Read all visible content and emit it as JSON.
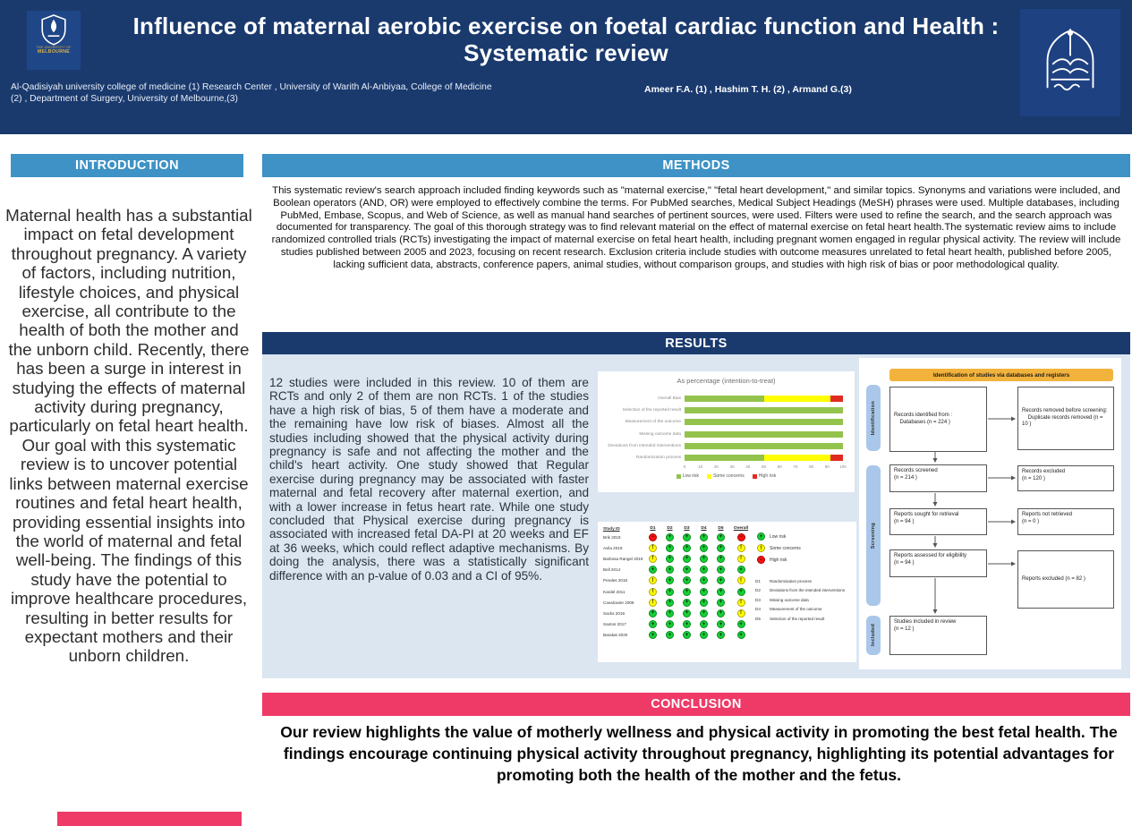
{
  "header": {
    "title_line1": "Influence of maternal aerobic exercise on foetal cardiac function and Health :",
    "title_line2": "Systematic review",
    "affiliations": "Al-Qadisiyah university college of medicine (1)  Research Center , University of Warith Al-Anbiyaa, College of Medicine (2) ,  Department of Surgery, University of Melbourne,(3)",
    "authors": "Ameer F.A. (1) , Hashim T. H. (2)  , Armand G.(3)",
    "left_logo_caption_line1": "THE UNIVERSITY OF",
    "left_logo_caption_line2": "MELBOURNE",
    "header_bg_color": "#1a3a6e"
  },
  "colors": {
    "section_blue": "#3e92c5",
    "navy": "#1a3a6e",
    "conclusion_pink": "#ef3a67",
    "results_panel_bg": "#dbe6f1",
    "prisma_banner_orange": "#f2b33d",
    "prisma_pill_blue": "#a9c7e9"
  },
  "sections": {
    "introduction": {
      "heading": "INTRODUCTION",
      "body": "Maternal health has a substantial impact on fetal development throughout pregnancy. A variety of factors, including nutrition, lifestyle choices, and physical exercise, all contribute to the health of both the mother and the unborn child. Recently, there has been a surge in interest in studying the effects of maternal activity during pregnancy, particularly on fetal heart health. Our goal with this systematic review is to uncover potential links between maternal exercise routines and fetal heart health, providing essential insights into the world of maternal and fetal well-being. The findings of this study have the potential to improve healthcare procedures, resulting in better results for expectant mothers and their unborn children."
    },
    "methods": {
      "heading": "METHODS",
      "body": "This systematic review's search approach included finding keywords such as \"maternal exercise,\" \"fetal heart development,\" and similar topics. Synonyms and variations were included, and Boolean operators (AND, OR) were employed to effectively combine the terms. For PubMed searches, Medical Subject Headings (MeSH) phrases were used. Multiple databases, including PubMed, Embase, Scopus, and Web of Science, as well as manual hand searches of pertinent sources, were used. Filters were used to refine the search, and the search approach was documented for transparency. The goal of this thorough strategy was to find relevant material on the effect of maternal exercise on fetal heart health.The systematic review aims to include randomized controlled trials (RCTs) investigating the impact of maternal exercise on fetal heart health, including pregnant women engaged in regular physical activity. The review will include studies published between 2005 and 2023, focusing on recent research. Exclusion criteria include studies with outcome measures unrelated to fetal heart health, published before 2005, lacking sufficient data, abstracts, conference papers, animal studies, without comparison groups, and studies with high risk of bias or poor methodological quality."
    },
    "results": {
      "heading": "RESULTS",
      "body": "12 studies were included in this review. 10 of them are RCTs and only 2 of them are non RCTs. 1 of the studies have a high risk of bias, 5 of them have a moderate and the remaining have low risk of biases. Almost all the studies including showed that the physical activity during pregnancy is safe and not affecting the mother and the child's heart activity. One study showed that Regular exercise during pregnancy may be associated with faster maternal and fetal recovery after maternal exertion, and with a lower increase in fetus heart rate. While one study concluded that Physical exercise during pregnancy is associated with increased fetal DA-PI at 20 weeks and EF at 36 weeks, which could reflect adaptive mechanisms. By doing the analysis, there was a statistically significant difference with an p-value of 0.03 and a CI of 95%."
    },
    "conclusion": {
      "heading": "CONCLUSION",
      "body": "Our review highlights the value of motherly wellness and physical activity in promoting the best fetal health. The findings encourage continuing physical activity throughout pregnancy, highlighting its potential advantages for promoting both the health of the mother and the fetus."
    }
  },
  "chart_data": [
    {
      "type": "bar",
      "variant": "stacked-horizontal-risk-of-bias",
      "title": "As percentage (intention-to-treat)",
      "categories": [
        "Overall Bias",
        "Selection of the reported result",
        "Measurement of the outcome",
        "Missing outcome data",
        "Deviations from intended interventions",
        "Randomization process"
      ],
      "series": [
        {
          "name": "Low risk",
          "color": "#93c34d",
          "values": [
            50,
            100,
            100,
            100,
            100,
            50
          ]
        },
        {
          "name": "Some concerns",
          "color": "#ffff00",
          "values": [
            42,
            0,
            0,
            0,
            0,
            42
          ]
        },
        {
          "name": "High risk",
          "color": "#e02b20",
          "values": [
            8,
            0,
            0,
            0,
            0,
            8
          ]
        }
      ],
      "xlim": [
        0,
        100
      ],
      "x_ticks": [
        0,
        10,
        20,
        30,
        40,
        50,
        60,
        70,
        80,
        90,
        100
      ],
      "grid": false,
      "legend_position": "bottom"
    },
    {
      "type": "table",
      "variant": "rob2-traffic-light",
      "columns": [
        "Study ID",
        "D1",
        "D2",
        "D3",
        "D4",
        "D5",
        "Overall"
      ],
      "rows": [
        {
          "study": "Brik 2019",
          "ratings": [
            "high",
            "low",
            "low",
            "low",
            "low",
            "high"
          ]
        },
        {
          "study": "Avila 2019",
          "ratings": [
            "some",
            "low",
            "low",
            "low",
            "low",
            "some"
          ]
        },
        {
          "study": "Barbosa Rangel 2019",
          "ratings": [
            "some",
            "low",
            "low",
            "low",
            "low",
            "some"
          ]
        },
        {
          "study": "Bell 2014",
          "ratings": [
            "low",
            "low",
            "low",
            "low",
            "low",
            "low"
          ]
        },
        {
          "study": "Perales 2016",
          "ratings": [
            "some",
            "low",
            "low",
            "low",
            "low",
            "some"
          ]
        },
        {
          "study": "Kardel 2011",
          "ratings": [
            "some",
            "low",
            "low",
            "low",
            "low",
            "low"
          ]
        },
        {
          "study": "Cavalcante 2009",
          "ratings": [
            "some",
            "low",
            "low",
            "low",
            "low",
            "some"
          ]
        },
        {
          "study": "Sacks 2016",
          "ratings": [
            "low",
            "low",
            "low",
            "low",
            "low",
            "some"
          ]
        },
        {
          "study": "Santos 2017",
          "ratings": [
            "low",
            "low",
            "low",
            "low",
            "low",
            "low"
          ]
        },
        {
          "study": "Barakat 2020",
          "ratings": [
            "low",
            "low",
            "low",
            "low",
            "low",
            "low"
          ]
        }
      ],
      "legend": [
        {
          "key": "low",
          "label": "Low risk",
          "symbol": "+",
          "color": "#15d135",
          "border": "#0d8a22"
        },
        {
          "key": "some",
          "label": "Some concerns",
          "symbol": "!",
          "color": "#ffff00",
          "border": "#b8a800"
        },
        {
          "key": "high",
          "label": "High risk",
          "symbol": "−",
          "color": "#ff0f0f",
          "border": "#a80000"
        }
      ],
      "domains": [
        {
          "code": "D1",
          "label": "Randomisation process"
        },
        {
          "code": "D2",
          "label": "Deviations from the intended interventions"
        },
        {
          "code": "D3",
          "label": "Missing outcome data"
        },
        {
          "code": "D4",
          "label": "Measurement of the outcome"
        },
        {
          "code": "D5",
          "label": "Selection of the reported result"
        }
      ]
    },
    {
      "type": "flowchart",
      "variant": "prisma",
      "title": "Identification of studies via databases and registers",
      "stages": [
        "Identification",
        "Screening",
        "Included"
      ],
      "boxes": [
        {
          "text": "Records identified from :\n    Databases (n = 224  )"
        },
        {
          "text": "Records removed before screening:\n    Duplicate records removed  (n = 10 )"
        },
        {
          "text": "Records screened\n(n = 214 )"
        },
        {
          "text": "Records excluded\n(n = 120 )"
        },
        {
          "text": "Reports sought for retrieval\n(n = 94 )"
        },
        {
          "text": "Reports not retrieved\n(n = 0 )"
        },
        {
          "text": "Reports assessed for eligibility\n(n = 94 )"
        },
        {
          "text": "Reports excluded (n = 82 )"
        },
        {
          "text": "Studies included in review\n(n = 12  )"
        }
      ]
    }
  ]
}
